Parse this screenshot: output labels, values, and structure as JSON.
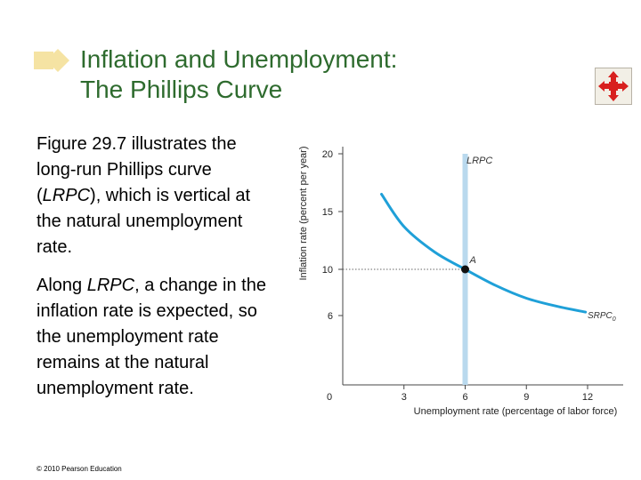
{
  "slide": {
    "title_line1": "Inflation and Unemployment:",
    "title_line2": "The Phillips Curve",
    "paragraph1_parts": [
      "Figure 29.7 illustrates the long-run Phillips curve (",
      "LRPC",
      "), which is vertical at the natural unemployment rate."
    ],
    "paragraph2_parts": [
      "Along ",
      "LRPC",
      ", a change in the inflation rate is expected, so the unemployment rate remains at the natural unemployment rate."
    ],
    "copyright": "© 2010 Pearson Education",
    "nav_icon": "four-arrows-move-icon",
    "colors": {
      "title": "#2e6b2e",
      "curve": "#1fa0d8",
      "lrpc": "#b9d9ee",
      "deco": "#f5e3a3",
      "nav": "#d8201e"
    }
  },
  "chart_data": {
    "type": "line",
    "xlabel": "Unemployment rate (percentage of labor force)",
    "ylabel": "Inflation rate (percent per year)",
    "xlim": [
      0,
      12
    ],
    "ylim": [
      0,
      20
    ],
    "x_ticks": [
      "0",
      "3",
      "6",
      "9",
      "12"
    ],
    "y_ticks": [
      "6",
      "10",
      "15",
      "20"
    ],
    "series": [
      {
        "name": "SRPC0",
        "x": [
          1.9,
          3,
          4.5,
          6,
          7.5,
          9,
          10.5,
          11.9
        ],
        "y": [
          16.5,
          13.7,
          11.5,
          10,
          8.6,
          7.5,
          6.8,
          6.3
        ]
      },
      {
        "name": "LRPC",
        "x": [
          6,
          6
        ],
        "y": [
          0,
          20
        ]
      }
    ],
    "labels": {
      "lrpc": "LRPC",
      "srpc": "SRPC",
      "srpc_sub": "0",
      "point": "A"
    },
    "point": {
      "label": "A",
      "x": 6,
      "y": 10
    }
  }
}
